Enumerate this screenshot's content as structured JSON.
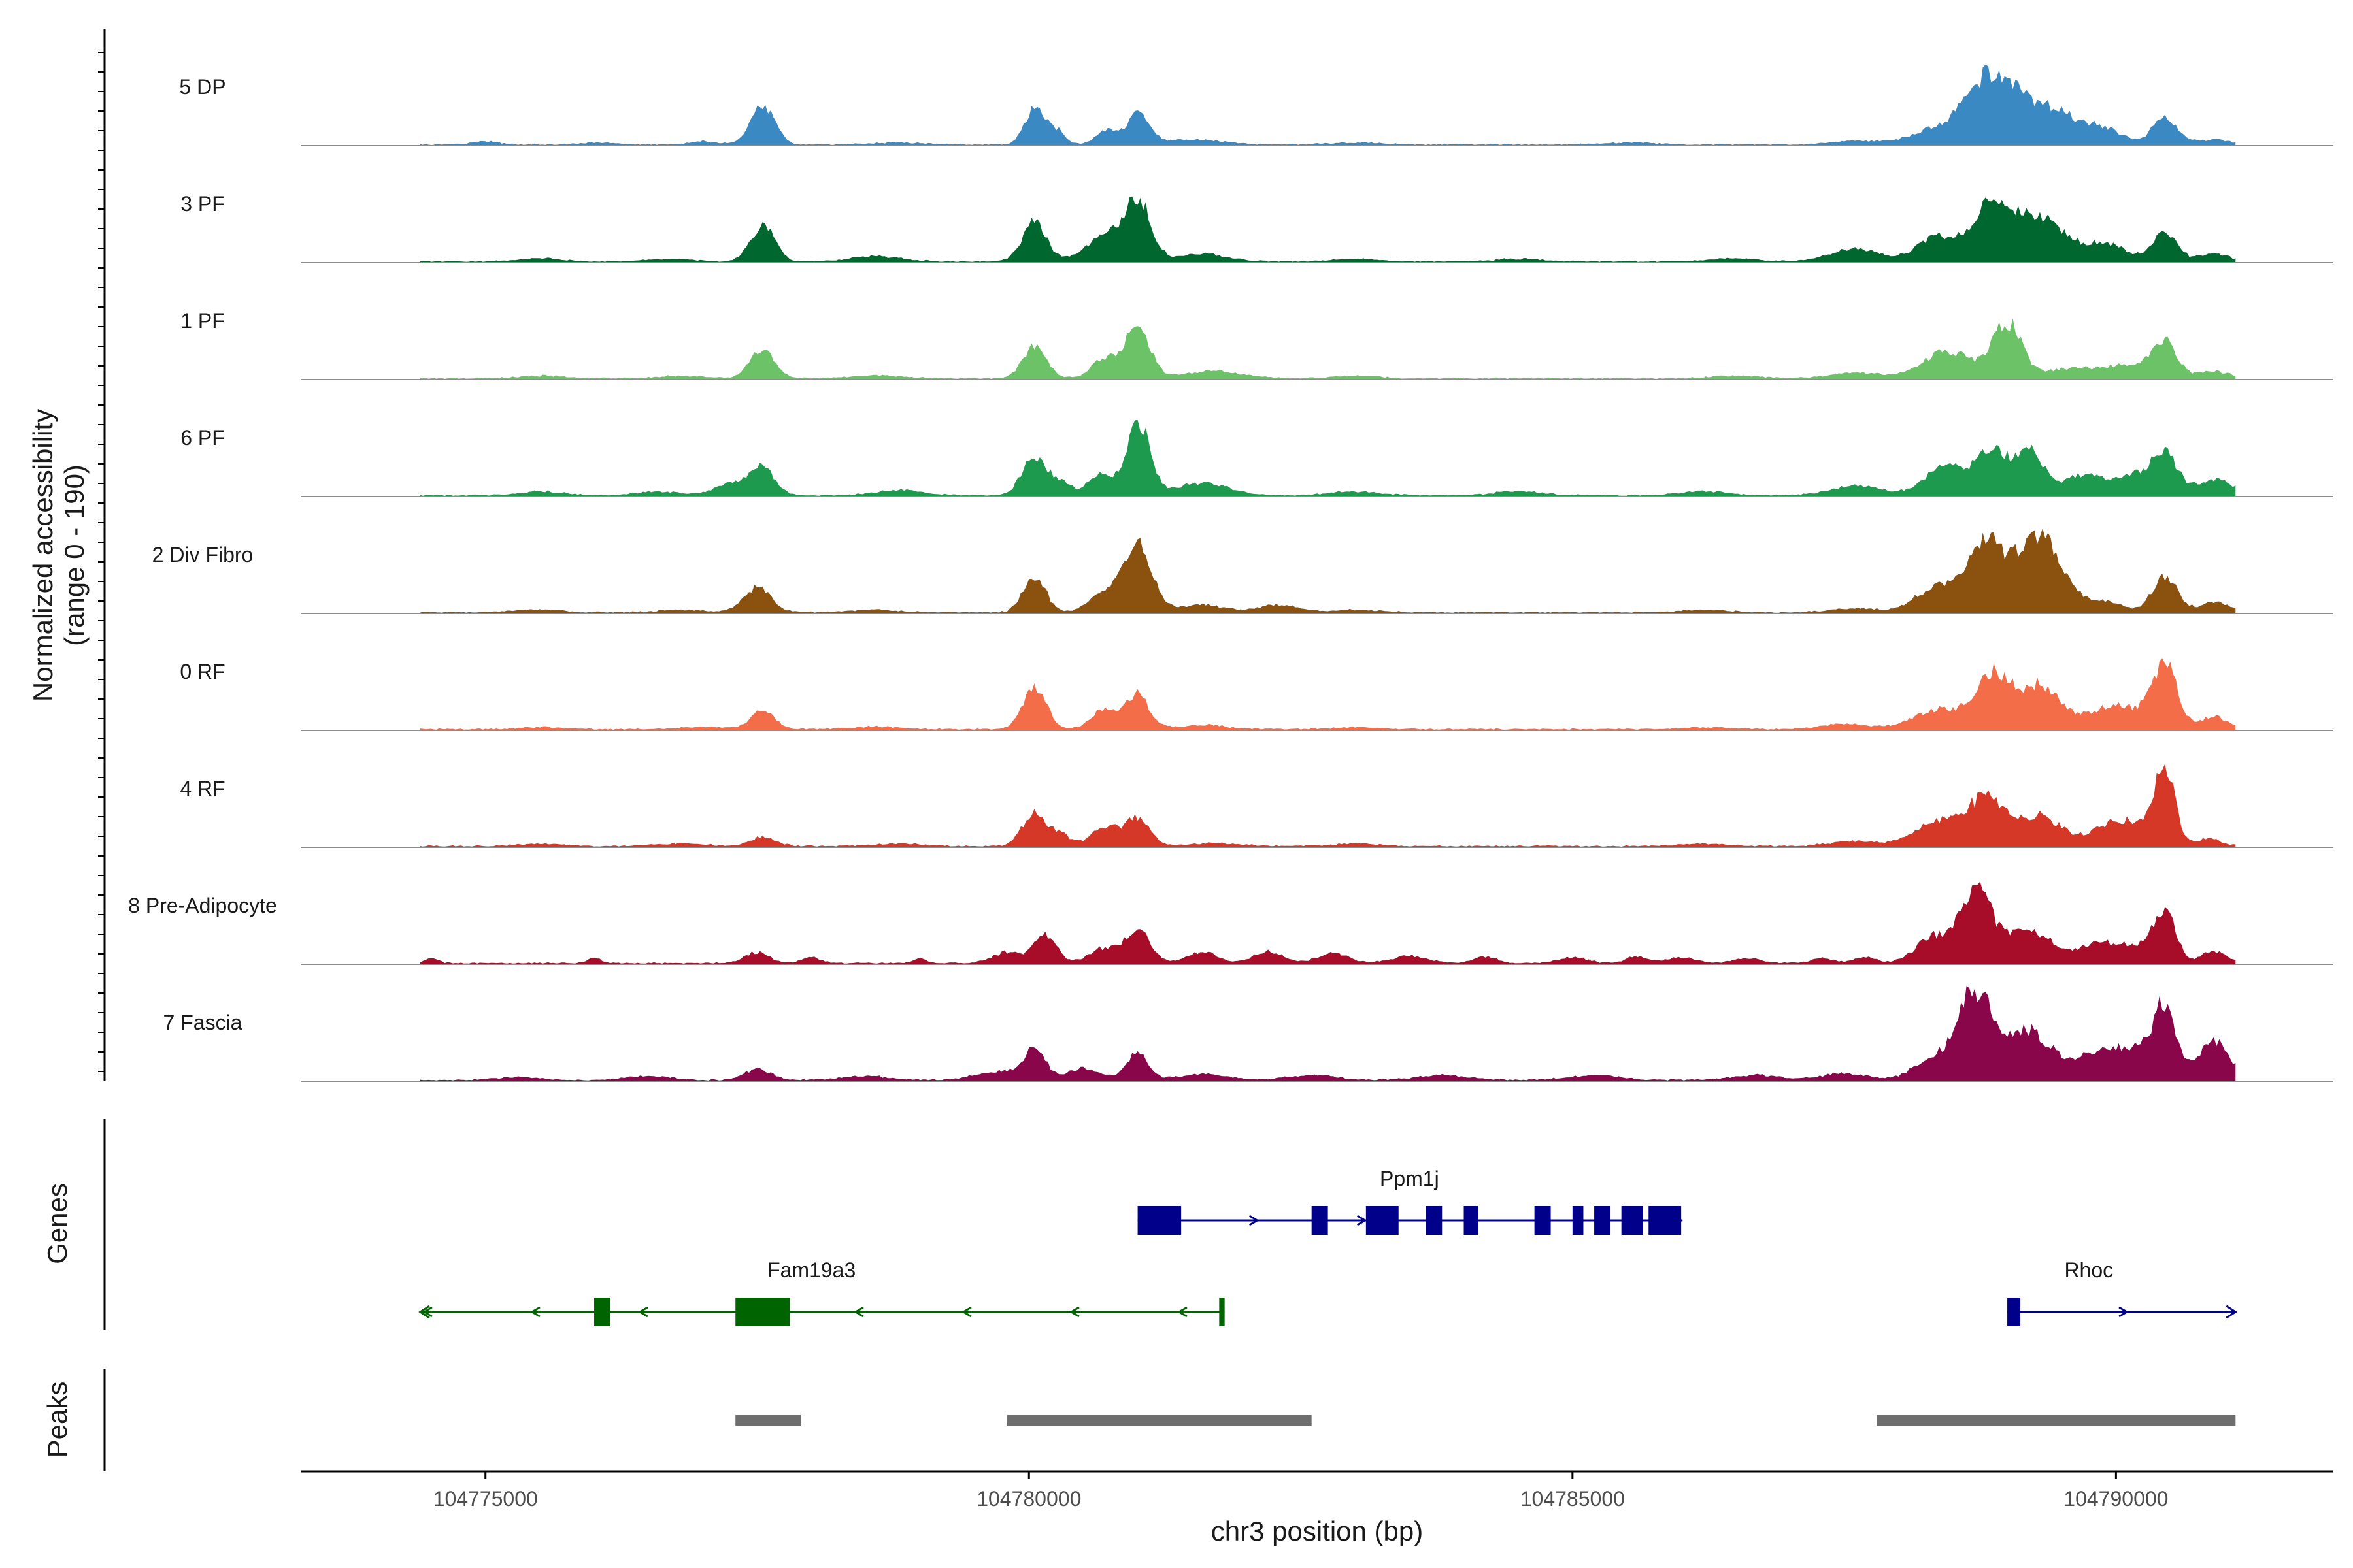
{
  "chart_data": {
    "type": "area",
    "title": "",
    "xlabel": "chr3 position (bp)",
    "ylabel_line1": "Normalized accessibility",
    "ylabel_line2": "(range 0 - 190)",
    "ylim": [
      0,
      190
    ],
    "xlim": [
      104773300,
      104792000
    ],
    "x_ticks": [
      104775000,
      104780000,
      104785000,
      104790000
    ],
    "x_tick_labels": [
      "104775000",
      "104780000",
      "104785000",
      "104790000"
    ],
    "track_range": [
      104774400,
      104791100
    ],
    "tracks": [
      {
        "name": "5 DP",
        "color": "#3a89c2",
        "peaks": [
          [
            104775000,
            6,
            120
          ],
          [
            104776000,
            4,
            150
          ],
          [
            104777000,
            6,
            120
          ],
          [
            104777550,
            80,
            110
          ],
          [
            104778800,
            4,
            200
          ],
          [
            104780050,
            70,
            90
          ],
          [
            104780250,
            28,
            80
          ],
          [
            104780700,
            28,
            90
          ],
          [
            104781000,
            60,
            110
          ],
          [
            104781500,
            10,
            260
          ],
          [
            104783000,
            4,
            200
          ],
          [
            104785500,
            4,
            200
          ],
          [
            104787600,
            8,
            200
          ],
          [
            104788300,
            26,
            220
          ],
          [
            104788850,
            140,
            230
          ],
          [
            104789400,
            70,
            250
          ],
          [
            104789900,
            26,
            170
          ],
          [
            104790450,
            52,
            120
          ],
          [
            104790900,
            10,
            140
          ]
        ]
      },
      {
        "name": "3 PF",
        "color": "#00682f",
        "peaks": [
          [
            104775500,
            6,
            200
          ],
          [
            104776700,
            5,
            200
          ],
          [
            104777550,
            75,
            110
          ],
          [
            104778600,
            10,
            220
          ],
          [
            104780050,
            80,
            110
          ],
          [
            104780700,
            48,
            180
          ],
          [
            104781000,
            120,
            120
          ],
          [
            104781600,
            15,
            220
          ],
          [
            104783000,
            5,
            200
          ],
          [
            104784500,
            5,
            200
          ],
          [
            104786500,
            6,
            200
          ],
          [
            104787600,
            25,
            220
          ],
          [
            104788350,
            50,
            180
          ],
          [
            104788850,
            110,
            180
          ],
          [
            104789300,
            90,
            220
          ],
          [
            104789900,
            35,
            200
          ],
          [
            104790450,
            62,
            110
          ],
          [
            104790900,
            15,
            140
          ]
        ]
      },
      {
        "name": "1 PF",
        "color": "#6cc266",
        "peaks": [
          [
            104775500,
            5,
            200
          ],
          [
            104776800,
            5,
            200
          ],
          [
            104777550,
            60,
            110
          ],
          [
            104778600,
            6,
            220
          ],
          [
            104780050,
            62,
            110
          ],
          [
            104780700,
            40,
            120
          ],
          [
            104781000,
            110,
            110
          ],
          [
            104781700,
            15,
            260
          ],
          [
            104783000,
            5,
            200
          ],
          [
            104786500,
            5,
            200
          ],
          [
            104787600,
            12,
            220
          ],
          [
            104788450,
            55,
            230
          ],
          [
            104789000,
            110,
            130
          ],
          [
            104789600,
            20,
            250
          ],
          [
            104790150,
            25,
            220
          ],
          [
            104790450,
            68,
            110
          ],
          [
            104790900,
            14,
            140
          ]
        ]
      },
      {
        "name": "6 PF",
        "color": "#1e9a4e",
        "peaks": [
          [
            104775500,
            8,
            200
          ],
          [
            104776600,
            8,
            200
          ],
          [
            104777300,
            25,
            170
          ],
          [
            104777550,
            50,
            110
          ],
          [
            104778800,
            10,
            220
          ],
          [
            104780050,
            80,
            110
          ],
          [
            104780300,
            25,
            90
          ],
          [
            104780650,
            42,
            110
          ],
          [
            104781000,
            150,
            110
          ],
          [
            104781600,
            25,
            240
          ],
          [
            104783000,
            8,
            220
          ],
          [
            104784500,
            8,
            220
          ],
          [
            104786200,
            8,
            220
          ],
          [
            104787600,
            20,
            220
          ],
          [
            104788450,
            60,
            200
          ],
          [
            104788850,
            80,
            130
          ],
          [
            104789200,
            90,
            150
          ],
          [
            104789700,
            40,
            150
          ],
          [
            104790150,
            42,
            200
          ],
          [
            104790450,
            78,
            110
          ],
          [
            104790900,
            32,
            180
          ]
        ]
      },
      {
        "name": "2 Div Fibro",
        "color": "#8a510f",
        "peaks": [
          [
            104775500,
            5,
            200
          ],
          [
            104776800,
            5,
            200
          ],
          [
            104777500,
            50,
            120
          ],
          [
            104778600,
            5,
            220
          ],
          [
            104780050,
            75,
            100
          ],
          [
            104780700,
            38,
            140
          ],
          [
            104781000,
            135,
            130
          ],
          [
            104781600,
            15,
            200
          ],
          [
            104782300,
            16,
            180
          ],
          [
            104783000,
            5,
            200
          ],
          [
            104786200,
            5,
            200
          ],
          [
            104787600,
            8,
            200
          ],
          [
            104788350,
            50,
            200
          ],
          [
            104788800,
            140,
            170
          ],
          [
            104789300,
            160,
            200
          ],
          [
            104789900,
            20,
            180
          ],
          [
            104790450,
            75,
            110
          ],
          [
            104790900,
            20,
            140
          ]
        ]
      },
      {
        "name": "0 RF",
        "color": "#f36d48",
        "peaks": [
          [
            104775500,
            4,
            200
          ],
          [
            104777000,
            5,
            200
          ],
          [
            104777550,
            38,
            110
          ],
          [
            104778600,
            5,
            220
          ],
          [
            104780050,
            82,
            110
          ],
          [
            104780700,
            40,
            120
          ],
          [
            104781000,
            68,
            110
          ],
          [
            104781600,
            8,
            220
          ],
          [
            104783000,
            4,
            200
          ],
          [
            104786200,
            4,
            200
          ],
          [
            104787500,
            10,
            220
          ],
          [
            104788350,
            40,
            220
          ],
          [
            104788850,
            105,
            160
          ],
          [
            104789300,
            90,
            200
          ],
          [
            104789900,
            30,
            180
          ],
          [
            104790150,
            30,
            200
          ],
          [
            104790450,
            130,
            110
          ],
          [
            104790900,
            25,
            130
          ]
        ]
      },
      {
        "name": "4 RF",
        "color": "#d63828",
        "peaks": [
          [
            104775500,
            5,
            200
          ],
          [
            104776800,
            6,
            200
          ],
          [
            104777550,
            18,
            120
          ],
          [
            104778800,
            5,
            220
          ],
          [
            104780050,
            68,
            110
          ],
          [
            104780300,
            22,
            90
          ],
          [
            104780700,
            40,
            120
          ],
          [
            104781000,
            55,
            110
          ],
          [
            104781700,
            6,
            220
          ],
          [
            104783000,
            5,
            200
          ],
          [
            104786200,
            5,
            200
          ],
          [
            104787600,
            10,
            220
          ],
          [
            104788350,
            50,
            200
          ],
          [
            104788800,
            95,
            170
          ],
          [
            104789300,
            60,
            200
          ],
          [
            104789900,
            25,
            180
          ],
          [
            104790150,
            40,
            200
          ],
          [
            104790450,
            160,
            90
          ],
          [
            104790850,
            15,
            120
          ]
        ]
      },
      {
        "name": "8 Pre-Adipocyte",
        "color": "#a70d28",
        "peaks": [
          [
            104774500,
            10,
            60
          ],
          [
            104776000,
            10,
            60
          ],
          [
            104777500,
            22,
            110
          ],
          [
            104778000,
            12,
            80
          ],
          [
            104779000,
            10,
            60
          ],
          [
            104779800,
            22,
            130
          ],
          [
            104780150,
            60,
            100
          ],
          [
            104780700,
            30,
            140
          ],
          [
            104781000,
            68,
            110
          ],
          [
            104781600,
            22,
            140
          ],
          [
            104782200,
            24,
            130
          ],
          [
            104782800,
            20,
            140
          ],
          [
            104783500,
            14,
            160
          ],
          [
            104784200,
            14,
            100
          ],
          [
            104785000,
            12,
            120
          ],
          [
            104785600,
            14,
            100
          ],
          [
            104786000,
            12,
            120
          ],
          [
            104786600,
            10,
            120
          ],
          [
            104787300,
            10,
            100
          ],
          [
            104787700,
            12,
            100
          ],
          [
            104788300,
            50,
            150
          ],
          [
            104788700,
            150,
            150
          ],
          [
            104789200,
            70,
            200
          ],
          [
            104789800,
            35,
            170
          ],
          [
            104790200,
            35,
            200
          ],
          [
            104790450,
            90,
            100
          ],
          [
            104790900,
            25,
            110
          ]
        ]
      },
      {
        "name": "7 Fascia",
        "color": "#8a064a",
        "peaks": [
          [
            104775300,
            6,
            180
          ],
          [
            104776500,
            8,
            200
          ],
          [
            104777500,
            22,
            120
          ],
          [
            104778500,
            8,
            220
          ],
          [
            104779700,
            18,
            200
          ],
          [
            104780050,
            60,
            100
          ],
          [
            104780500,
            24,
            160
          ],
          [
            104781000,
            55,
            100
          ],
          [
            104781600,
            12,
            220
          ],
          [
            104782600,
            10,
            220
          ],
          [
            104783800,
            10,
            220
          ],
          [
            104785200,
            10,
            220
          ],
          [
            104786700,
            10,
            220
          ],
          [
            104787500,
            14,
            200
          ],
          [
            104788300,
            40,
            170
          ],
          [
            104788700,
            180,
            160
          ],
          [
            104789200,
            100,
            200
          ],
          [
            104789800,
            50,
            200
          ],
          [
            104790200,
            55,
            200
          ],
          [
            104790450,
            135,
            100
          ],
          [
            104790900,
            80,
            140
          ]
        ]
      }
    ],
    "genes_ylabel": "Genes",
    "genes": [
      {
        "name": "Ppm1j",
        "strand": "+",
        "color": "#00008b",
        "start": 104781000,
        "end": 104786000,
        "exons": [
          [
            104781000,
            104781400
          ],
          [
            104782600,
            104782750
          ],
          [
            104783100,
            104783400
          ],
          [
            104783650,
            104783800
          ],
          [
            104784000,
            104784130
          ],
          [
            104784650,
            104784800
          ],
          [
            104785000,
            104785100
          ],
          [
            104785200,
            104785350
          ],
          [
            104785450,
            104785650
          ],
          [
            104785700,
            104786000
          ]
        ]
      },
      {
        "name": "Fam19a3",
        "strand": "-",
        "color": "#006400",
        "start": 104774400,
        "end": 104781800,
        "exons": [
          [
            104776000,
            104776150
          ],
          [
            104777300,
            104777800
          ],
          [
            104781750,
            104781800
          ]
        ]
      },
      {
        "name": "Rhoc",
        "strand": "+",
        "color": "#00008b",
        "start": 104789000,
        "end": 104791100,
        "exons": [
          [
            104789000,
            104789120
          ]
        ]
      }
    ],
    "peaks_ylabel": "Peaks",
    "peak_regions": [
      [
        104777300,
        104777900
      ],
      [
        104779800,
        104782600
      ],
      [
        104787800,
        104791100
      ]
    ]
  }
}
